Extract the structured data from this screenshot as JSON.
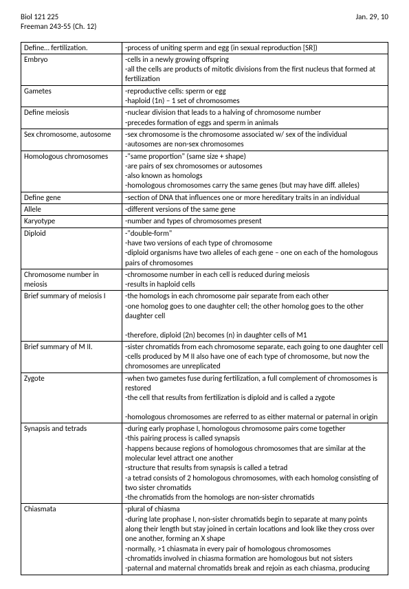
{
  "header": {
    "course": "Biol 121 225",
    "reading": "Freeman 243-55 (Ch. 12)",
    "date": "Jan. 29, 10"
  },
  "rows": [
    {
      "term": "Define… fertilization.",
      "lines": [
        "-process of uniting sperm and egg (in sexual reproduction [SR])"
      ]
    },
    {
      "term": "Embryo",
      "lines": [
        "-cells in a newly growing offspring",
        "-all the cells are products of mitotic divisions from the first nucleus that formed at fertilization"
      ]
    },
    {
      "term": "Gametes",
      "lines": [
        "-reproductive cells: sperm or egg",
        "-haploid (1n) – 1 set of chromosomes"
      ]
    },
    {
      "term": "Define meiosis",
      "lines": [
        "-nuclear division that leads to a halving of chromosome number",
        "-precedes formation of eggs and sperm in animals"
      ]
    },
    {
      "term": "Sex chromosome, autosome",
      "lines": [
        "-sex chromosome is the chromosome associated w/ sex of the individual",
        "-autosomes are non-sex chromosomes"
      ]
    },
    {
      "term": "Homologous chromosomes",
      "lines": [
        "-\"same proportion\" (same size + shape)",
        "-are pairs of sex chromosomes or autosomes",
        "-also known as homologs",
        "-homologous chromosomes carry the same genes (but may have diff. alleles)"
      ]
    },
    {
      "term": "Define gene",
      "lines": [
        "-section of DNA that influences one or more hereditary traits in an individual"
      ]
    },
    {
      "term": "Allele",
      "lines": [
        "-different versions of the same gene"
      ]
    },
    {
      "term": "Karyotype",
      "lines": [
        "-number and types of chromosomes present"
      ]
    },
    {
      "term": "Diploid",
      "lines": [
        "-\"double-form\"",
        "-have two versions of each type of chromosome",
        "-diploid organisms have two alleles of each gene – one on each of the homologous pairs of chromosomes"
      ]
    },
    {
      "term": "Chromosome number in meiosis",
      "lines": [
        "-chromosome number in each cell is reduced during meiosis",
        "-results in haploid cells"
      ]
    },
    {
      "term": "Brief summary of meiosis I",
      "lines": [
        "-the homologs in each chromosome pair separate from each other",
        "-one homolog goes to one daughter cell; the other homolog goes to the other daughter cell",
        "",
        "-therefore, diploid (2n) becomes (n) in daughter cells of M1"
      ]
    },
    {
      "term": "Brief summary of M II.",
      "lines": [
        "-sister chromatids from each chromosome separate, each going to one daughter cell",
        "-cells produced by M II also have one of each type of chromosome, but now the chromosomes are unreplicated"
      ]
    },
    {
      "term": "Zygote",
      "lines": [
        "-when two gametes fuse during fertilization, a full complement of chromosomes is restored",
        "-the cell that results from fertilization is diploid and is called a zygote",
        "",
        "-homologous chromosomes are referred to as either maternal or paternal in origin"
      ]
    },
    {
      "term": "Synapsis and tetrads",
      "lines": [
        "-during early prophase I, homologous chromosome pairs come together",
        "-this pairing process is called synapsis",
        "-happens because regions of homologous chromosomes that are similar at the molecular level attract one another",
        "-structure that results from synapsis is called a tetrad",
        "-a tetrad consists of 2 homologous chromosomes, with each homolog consisting of two sister chromatids",
        "-the chromatids from the homologs are non-sister chromatids"
      ]
    },
    {
      "term": "Chiasmata",
      "lines": [
        "-plural of chiasma",
        "-during late prophase I, non-sister chromatids begin to separate at many points along their length but stay joined in certain locations and look like they cross over one another, forming an X  shape",
        "-normally, >1 chiasmata in every pair of homologous chromosomes",
        "-chromatids involved in chiasma formation are homologous but not sisters",
        "-paternal and maternal chromatids break and rejoin as each chiasma, producing"
      ]
    }
  ]
}
